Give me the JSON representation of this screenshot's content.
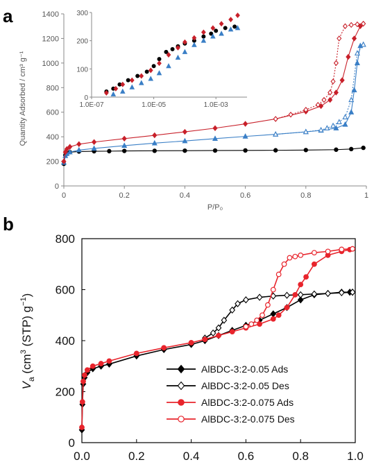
{
  "panel_labels": {
    "a": "a",
    "b": "b"
  },
  "colors": {
    "black": "#000000",
    "red": "#c8202a",
    "blue": "#3a7fc6",
    "darkred": "#b8252e",
    "axis": "#888888"
  },
  "chart_data": [
    {
      "type": "line",
      "panel": "a",
      "xlabel": "P/P₀",
      "ylabel": "Quantity Adsorbed / cm³ g⁻¹",
      "xlim": [
        0,
        1.0
      ],
      "ylim": [
        0,
        1400
      ],
      "xticks": [
        "0",
        "0.2",
        "0.4",
        "0.6",
        "0.8",
        "1"
      ],
      "yticks": [
        "0",
        "200",
        "400",
        "600",
        "800",
        "1000",
        "1200",
        "1400"
      ],
      "series": [
        {
          "color": "#000000",
          "marker": "circle",
          "line": "solid",
          "x": [
            0.0,
            0.005,
            0.01,
            0.02,
            0.05,
            0.1,
            0.15,
            0.2,
            0.3,
            0.4,
            0.5,
            0.6,
            0.7,
            0.8,
            0.9,
            0.95,
            0.99
          ],
          "y": [
            180,
            250,
            265,
            275,
            280,
            282,
            283,
            285,
            286,
            287,
            288,
            289,
            290,
            292,
            295,
            300,
            310
          ]
        },
        {
          "color": "#3a7fc6",
          "marker": "triangle",
          "line": "solid",
          "x": [
            0.0,
            0.005,
            0.01,
            0.02,
            0.05,
            0.1,
            0.2,
            0.3,
            0.4,
            0.5,
            0.6,
            0.7,
            0.8,
            0.85,
            0.9,
            0.93,
            0.95,
            0.96,
            0.97,
            0.98,
            0.99
          ],
          "y": [
            190,
            245,
            262,
            275,
            292,
            305,
            328,
            348,
            366,
            385,
            403,
            420,
            440,
            452,
            470,
            500,
            600,
            780,
            1000,
            1140,
            1150
          ]
        },
        {
          "color": "#3a7fc6",
          "marker": "open-triangle",
          "line": "dotted",
          "x": [
            0.99,
            0.97,
            0.95,
            0.93,
            0.91,
            0.89,
            0.87,
            0.85,
            0.8,
            0.7
          ],
          "y": [
            1150,
            1080,
            700,
            560,
            520,
            490,
            470,
            455,
            440,
            420
          ]
        },
        {
          "color": "#c8202a",
          "marker": "diamond",
          "line": "solid",
          "x": [
            0.0,
            0.005,
            0.01,
            0.02,
            0.05,
            0.1,
            0.2,
            0.3,
            0.4,
            0.5,
            0.6,
            0.7,
            0.8,
            0.85,
            0.88,
            0.9,
            0.92,
            0.94,
            0.96,
            0.98,
            0.99
          ],
          "y": [
            200,
            275,
            300,
            318,
            340,
            357,
            385,
            412,
            440,
            470,
            505,
            545,
            605,
            650,
            700,
            760,
            860,
            1050,
            1200,
            1300,
            1320
          ]
        },
        {
          "color": "#c8202a",
          "marker": "open-diamond",
          "line": "dotted",
          "x": [
            0.99,
            0.97,
            0.95,
            0.93,
            0.91,
            0.9,
            0.89,
            0.88,
            0.86,
            0.84,
            0.8,
            0.75,
            0.7
          ],
          "y": [
            1320,
            1315,
            1310,
            1300,
            1200,
            1000,
            850,
            760,
            700,
            660,
            620,
            580,
            545
          ]
        }
      ],
      "inset": {
        "xscale": "log",
        "xlim": [
          "1.0E-07",
          "1.0E-02"
        ],
        "ylim": [
          0,
          300
        ],
        "xticks": [
          "1.0E-07",
          "1.0E-05",
          "1.0E-03"
        ],
        "yticks": [
          "0",
          "100",
          "200",
          "300"
        ],
        "series": [
          {
            "color": "#000000",
            "marker": "circle",
            "x": [
              3e-07,
              5e-07,
              8e-07,
              1.5e-06,
              3e-06,
              6e-06,
              1e-05,
              1.5e-05,
              2.5e-05,
              4e-05,
              6e-05,
              0.0001,
              0.0002,
              0.0004,
              0.0007,
              0.001,
              0.002,
              0.004
            ],
            "y": [
              20,
              30,
              45,
              60,
              75,
              90,
              110,
              135,
              160,
              170,
              180,
              190,
              200,
              215,
              225,
              235,
              245,
              250
            ]
          },
          {
            "color": "#c8202a",
            "marker": "diamond",
            "x": [
              3e-07,
              6e-07,
              1e-06,
              2e-06,
              4e-06,
              8e-06,
              1.5e-05,
              3e-05,
              6e-05,
              0.0001,
              0.0002,
              0.0004,
              0.0008,
              0.0015,
              0.003,
              0.005
            ],
            "y": [
              15,
              30,
              45,
              60,
              75,
              95,
              120,
              150,
              175,
              195,
              210,
              230,
              245,
              260,
              275,
              290
            ]
          },
          {
            "color": "#3a7fc6",
            "marker": "triangle",
            "x": [
              5e-07,
              1e-06,
              2e-06,
              4e-06,
              8e-06,
              1.5e-05,
              3e-05,
              6e-05,
              0.0001,
              0.0002,
              0.0004,
              0.0008,
              0.0015,
              0.003,
              0.005
            ],
            "y": [
              10,
              20,
              35,
              50,
              65,
              85,
              110,
              140,
              160,
              185,
              200,
              215,
              225,
              240,
              245
            ]
          }
        ]
      }
    },
    {
      "type": "line",
      "panel": "b",
      "xlabel": "",
      "ylabel_parts": {
        "v": "V",
        "sub": "a",
        "rest": " (cm",
        "sup3": "3",
        "rest2": " (STP) g",
        "supm1": "−1",
        "close": ")"
      },
      "xlim": [
        0,
        1.0
      ],
      "ylim": [
        0,
        800
      ],
      "xticks": [
        "0.0",
        "0.2",
        "0.4",
        "0.6",
        "0.8",
        "1.0"
      ],
      "yticks": [
        "0",
        "200",
        "400",
        "600",
        "800"
      ],
      "series": [
        {
          "name": "AlBDC-3:2-0.05 Ads",
          "color": "#000000",
          "marker": "diamond",
          "x": [
            0.0,
            0.002,
            0.005,
            0.01,
            0.02,
            0.04,
            0.07,
            0.1,
            0.2,
            0.3,
            0.4,
            0.45,
            0.5,
            0.55,
            0.6,
            0.65,
            0.7,
            0.75,
            0.8,
            0.85,
            0.9,
            0.95,
            0.98,
            0.99
          ],
          "y": [
            50,
            150,
            230,
            255,
            275,
            290,
            300,
            308,
            340,
            365,
            385,
            400,
            420,
            440,
            460,
            480,
            505,
            530,
            560,
            580,
            585,
            590,
            590,
            590
          ]
        },
        {
          "name": "AlBDC-3:2-0.05 Des",
          "color": "#000000",
          "marker": "open-diamond",
          "x": [
            0.99,
            0.95,
            0.9,
            0.85,
            0.8,
            0.75,
            0.7,
            0.65,
            0.6,
            0.57,
            0.55,
            0.52,
            0.5,
            0.48,
            0.45
          ],
          "y": [
            590,
            588,
            585,
            583,
            580,
            578,
            575,
            570,
            560,
            545,
            520,
            480,
            450,
            430,
            410
          ]
        },
        {
          "name": "AlBDC-3:2-0.075 Ads",
          "color": "#e8242c",
          "marker": "circle",
          "x": [
            0.0,
            0.002,
            0.005,
            0.01,
            0.02,
            0.04,
            0.07,
            0.1,
            0.2,
            0.3,
            0.4,
            0.45,
            0.5,
            0.55,
            0.6,
            0.65,
            0.7,
            0.72,
            0.75,
            0.78,
            0.8,
            0.82,
            0.85,
            0.9,
            0.95,
            0.98,
            0.99
          ],
          "y": [
            60,
            160,
            240,
            265,
            285,
            300,
            310,
            320,
            350,
            372,
            392,
            405,
            420,
            435,
            450,
            465,
            485,
            500,
            530,
            580,
            620,
            650,
            700,
            735,
            750,
            757,
            760
          ]
        },
        {
          "name": "AlBDC-3:2-0.075 Des",
          "color": "#e8242c",
          "marker": "open-circle",
          "x": [
            0.99,
            0.95,
            0.9,
            0.85,
            0.8,
            0.78,
            0.76,
            0.74,
            0.72,
            0.7,
            0.68,
            0.66,
            0.64,
            0.62,
            0.6
          ],
          "y": [
            760,
            758,
            750,
            745,
            735,
            730,
            725,
            700,
            660,
            600,
            540,
            500,
            480,
            465,
            455
          ]
        }
      ],
      "legend_position": "bottom-right"
    }
  ]
}
